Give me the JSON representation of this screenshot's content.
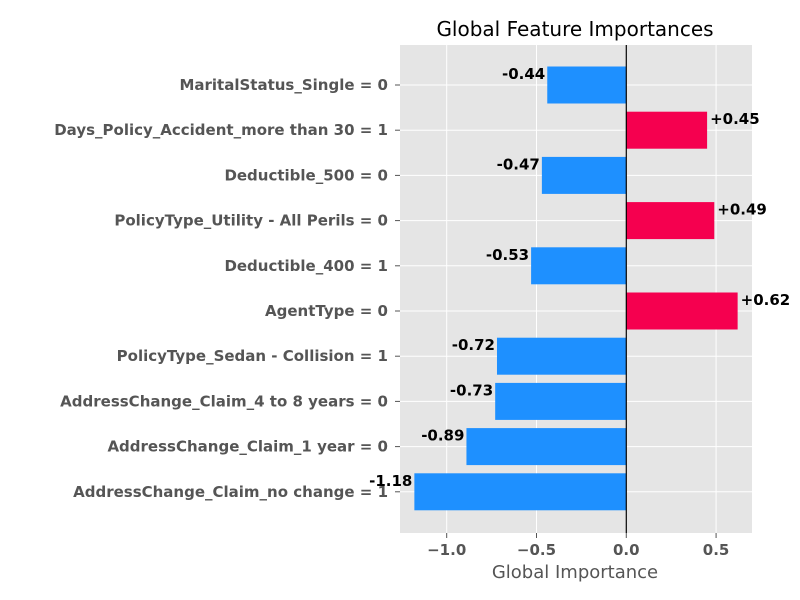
{
  "chart_data": {
    "type": "bar",
    "orientation": "horizontal",
    "title": "Global Feature Importances",
    "xlabel": "Global Importance",
    "ylabel": "",
    "categories": [
      "MaritalStatus_Single = 0",
      "Days_Policy_Accident_more than 30 = 1",
      "Deductible_500 = 0",
      "PolicyType_Utility - All Perils = 0",
      "Deductible_400 = 1",
      "AgentType = 0",
      "PolicyType_Sedan - Collision = 1",
      "AddressChange_Claim_4 to 8 years = 0",
      "AddressChange_Claim_1 year = 0",
      "AddressChange_Claim_no change = 1"
    ],
    "values": [
      -0.44,
      0.45,
      -0.47,
      0.49,
      -0.53,
      0.62,
      -0.72,
      -0.73,
      -0.89,
      -1.18
    ],
    "value_labels": [
      "-0.44",
      "+0.45",
      "-0.47",
      "+0.49",
      "-0.53",
      "+0.62",
      "-0.72",
      "-0.73",
      "-0.89",
      "-1.18"
    ],
    "xticks": [
      -1.0,
      -0.5,
      0.0,
      0.5
    ],
    "xtick_labels": [
      "−1.0",
      "−0.5",
      "0.0",
      "0.5"
    ],
    "xlim": [
      -1.26,
      0.7
    ],
    "grid": true,
    "legend": "none",
    "colors": {
      "negative": "#1e90ff",
      "positive": "#f5004f",
      "background": "#e5e5e5",
      "grid": "#ffffff",
      "zero_line": "#000000"
    }
  }
}
